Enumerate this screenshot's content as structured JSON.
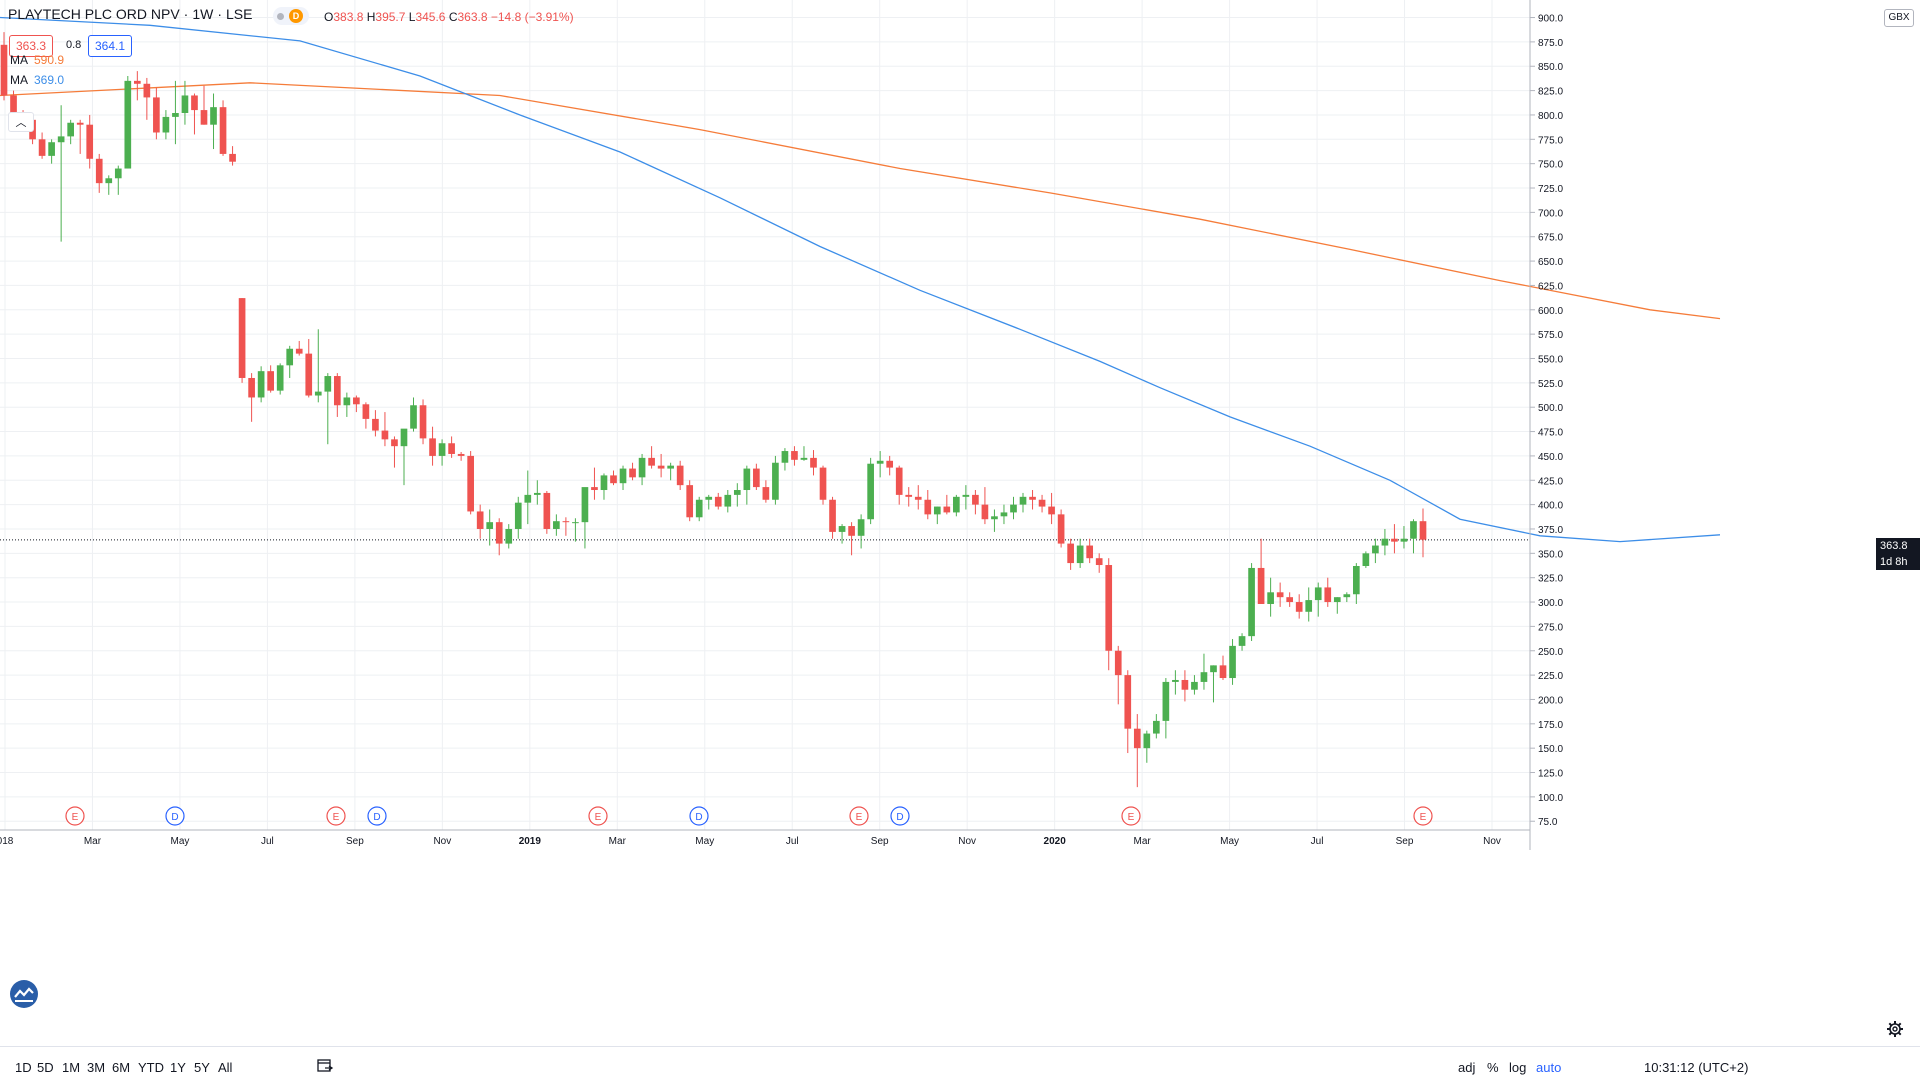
{
  "header": {
    "symbol": "PLAYTECH PLC ORD NPV",
    "interval": "1W",
    "exchange": "LSE",
    "badge_letter": "D",
    "ohlc": {
      "o_label": "O",
      "o": "383.8",
      "h_label": "H",
      "h": "395.7",
      "l_label": "L",
      "l": "345.6",
      "c_label": "C",
      "c": "363.8",
      "change": "−14.8 (−3.91%)"
    },
    "bid": "363.3",
    "spread": "0.8",
    "ask": "364.1"
  },
  "indicators": [
    {
      "label": "MA",
      "value": "590.9",
      "color": "#f57c3a"
    },
    {
      "label": "MA",
      "value": "369.0",
      "color": "#3d8ee8"
    }
  ],
  "price_axis": {
    "currency": "GBX",
    "ticks": [
      "900.0",
      "875.0",
      "850.0",
      "825.0",
      "800.0",
      "775.0",
      "750.0",
      "725.0",
      "700.0",
      "675.0",
      "650.0",
      "625.0",
      "600.0",
      "575.0",
      "550.0",
      "525.0",
      "500.0",
      "475.0",
      "450.0",
      "425.0",
      "400.0",
      "375.0",
      "350.0",
      "325.0",
      "300.0",
      "275.0",
      "250.0",
      "225.0",
      "200.0",
      "175.0",
      "150.0",
      "125.0",
      "100.0",
      "75.0"
    ],
    "last_price": "363.8",
    "countdown": "1d 8h"
  },
  "time_axis": {
    "labels": [
      "018",
      "Mar",
      "May",
      "Jul",
      "Sep",
      "Nov",
      "2019",
      "Mar",
      "May",
      "Jul",
      "Sep",
      "Nov",
      "2020",
      "Mar",
      "May",
      "Jul",
      "Sep",
      "Nov"
    ]
  },
  "events": [
    {
      "letter": "E",
      "color": "#ef5350"
    },
    {
      "letter": "D",
      "color": "#2962ff"
    },
    {
      "letter": "E",
      "color": "#ef5350"
    },
    {
      "letter": "D",
      "color": "#2962ff"
    },
    {
      "letter": "E",
      "color": "#ef5350"
    },
    {
      "letter": "D",
      "color": "#2962ff"
    },
    {
      "letter": "E",
      "color": "#ef5350"
    },
    {
      "letter": "D",
      "color": "#2962ff"
    },
    {
      "letter": "E",
      "color": "#ef5350"
    },
    {
      "letter": "E",
      "color": "#ef5350"
    }
  ],
  "bottom": {
    "ranges": [
      "1D",
      "5D",
      "1M",
      "3M",
      "6M",
      "YTD",
      "1Y",
      "5Y",
      "All"
    ],
    "time": "10:31:12 (UTC+2)",
    "options": [
      "adj",
      "%",
      "log",
      "auto"
    ]
  },
  "colors": {
    "up": "#26a69a",
    "up_fill": "#4caf50",
    "down": "#ef5350",
    "ma_long": "#f57c3a",
    "ma_short": "#3d8ee8",
    "grid": "#eef0f3"
  },
  "chart_data": {
    "type": "candlestick",
    "title": "PLAYTECH PLC ORD NPV",
    "interval": "1W",
    "ylim": [
      66,
      918
    ],
    "ylabel": "",
    "candles": [
      [
        872,
        885,
        815,
        820
      ],
      [
        820,
        825,
        795,
        800
      ],
      [
        800,
        805,
        790,
        795
      ],
      [
        795,
        800,
        770,
        775
      ],
      [
        775,
        782,
        755,
        758
      ],
      [
        758,
        775,
        750,
        772
      ],
      [
        772,
        810,
        670,
        778
      ],
      [
        778,
        795,
        770,
        792
      ],
      [
        792,
        795,
        760,
        790
      ],
      [
        790,
        800,
        745,
        755
      ],
      [
        755,
        760,
        720,
        730
      ],
      [
        730,
        738,
        718,
        735
      ],
      [
        735,
        748,
        718,
        745
      ],
      [
        745,
        840,
        745,
        835
      ],
      [
        835,
        845,
        815,
        832
      ],
      [
        832,
        838,
        795,
        818
      ],
      [
        818,
        828,
        775,
        782
      ],
      [
        782,
        805,
        775,
        798
      ],
      [
        798,
        835,
        770,
        802
      ],
      [
        802,
        835,
        790,
        820
      ],
      [
        820,
        822,
        780,
        805
      ],
      [
        805,
        830,
        790,
        790
      ],
      [
        790,
        822,
        765,
        808
      ],
      [
        808,
        815,
        758,
        760
      ],
      [
        760,
        768,
        748,
        752
      ],
      [
        612,
        612,
        525,
        530
      ],
      [
        530,
        535,
        485,
        510
      ],
      [
        510,
        542,
        505,
        537
      ],
      [
        537,
        543,
        515,
        517
      ],
      [
        517,
        545,
        513,
        543
      ],
      [
        543,
        563,
        530,
        560
      ],
      [
        560,
        568,
        553,
        555
      ],
      [
        555,
        570,
        510,
        512
      ],
      [
        512,
        580,
        505,
        516
      ],
      [
        516,
        535,
        462,
        532
      ],
      [
        532,
        535,
        490,
        502
      ],
      [
        502,
        515,
        490,
        510
      ],
      [
        510,
        512,
        495,
        503
      ],
      [
        503,
        505,
        478,
        488
      ],
      [
        488,
        497,
        470,
        476
      ],
      [
        476,
        495,
        460,
        467
      ],
      [
        467,
        470,
        438,
        460
      ],
      [
        460,
        470,
        420,
        478
      ],
      [
        478,
        510,
        475,
        502
      ],
      [
        502,
        508,
        462,
        468
      ],
      [
        468,
        480,
        440,
        450
      ],
      [
        450,
        467,
        440,
        463
      ],
      [
        463,
        470,
        448,
        452
      ],
      [
        452,
        454,
        445,
        450
      ],
      [
        450,
        455,
        390,
        393
      ],
      [
        393,
        400,
        365,
        375
      ],
      [
        375,
        395,
        358,
        382
      ],
      [
        382,
        386,
        348,
        360
      ],
      [
        360,
        380,
        355,
        375
      ],
      [
        375,
        408,
        365,
        402
      ],
      [
        402,
        435,
        380,
        410
      ],
      [
        410,
        425,
        400,
        412
      ],
      [
        412,
        414,
        370,
        375
      ],
      [
        375,
        390,
        368,
        383
      ],
      [
        383,
        387,
        368,
        382
      ],
      [
        382,
        386,
        362,
        382
      ],
      [
        382,
        415,
        355,
        418
      ],
      [
        418,
        438,
        405,
        415
      ],
      [
        415,
        432,
        405,
        430
      ],
      [
        430,
        435,
        420,
        422
      ],
      [
        422,
        440,
        415,
        437
      ],
      [
        437,
        443,
        425,
        428
      ],
      [
        428,
        452,
        420,
        448
      ],
      [
        448,
        460,
        437,
        440
      ],
      [
        440,
        452,
        428,
        437
      ],
      [
        437,
        443,
        425,
        440
      ],
      [
        440,
        445,
        415,
        420
      ],
      [
        420,
        425,
        383,
        387
      ],
      [
        387,
        408,
        383,
        405
      ],
      [
        405,
        410,
        395,
        408
      ],
      [
        408,
        412,
        395,
        398
      ],
      [
        398,
        415,
        392,
        410
      ],
      [
        410,
        422,
        398,
        415
      ],
      [
        415,
        440,
        400,
        437
      ],
      [
        437,
        442,
        415,
        418
      ],
      [
        418,
        425,
        402,
        405
      ],
      [
        405,
        450,
        400,
        443
      ],
      [
        443,
        458,
        435,
        455
      ],
      [
        455,
        460,
        440,
        446
      ],
      [
        446,
        460,
        445,
        448
      ],
      [
        448,
        456,
        430,
        438
      ],
      [
        438,
        440,
        400,
        405
      ],
      [
        405,
        408,
        365,
        372
      ],
      [
        372,
        380,
        360,
        378
      ],
      [
        378,
        382,
        348,
        368
      ],
      [
        368,
        390,
        355,
        385
      ],
      [
        385,
        448,
        380,
        442
      ],
      [
        442,
        455,
        428,
        445
      ],
      [
        445,
        450,
        430,
        438
      ],
      [
        438,
        440,
        400,
        410
      ],
      [
        410,
        418,
        398,
        408
      ],
      [
        408,
        420,
        395,
        405
      ],
      [
        405,
        415,
        385,
        390
      ],
      [
        390,
        398,
        380,
        398
      ],
      [
        398,
        410,
        390,
        392
      ],
      [
        392,
        410,
        388,
        408
      ],
      [
        408,
        420,
        395,
        410
      ],
      [
        410,
        415,
        390,
        400
      ],
      [
        400,
        418,
        380,
        385
      ],
      [
        385,
        395,
        372,
        388
      ],
      [
        388,
        400,
        380,
        392
      ],
      [
        392,
        408,
        385,
        400
      ],
      [
        400,
        412,
        392,
        408
      ],
      [
        408,
        415,
        395,
        405
      ],
      [
        405,
        410,
        392,
        398
      ],
      [
        398,
        412,
        380,
        390
      ],
      [
        390,
        395,
        356,
        360
      ],
      [
        360,
        365,
        333,
        340
      ],
      [
        340,
        365,
        335,
        358
      ],
      [
        358,
        365,
        340,
        345
      ],
      [
        345,
        350,
        330,
        338
      ],
      [
        338,
        345,
        230,
        250
      ],
      [
        250,
        255,
        195,
        225
      ],
      [
        225,
        230,
        145,
        170
      ],
      [
        170,
        185,
        110,
        150
      ],
      [
        150,
        168,
        135,
        165
      ],
      [
        165,
        185,
        160,
        178
      ],
      [
        178,
        222,
        160,
        218
      ],
      [
        218,
        230,
        205,
        220
      ],
      [
        220,
        230,
        198,
        210
      ],
      [
        210,
        225,
        205,
        218
      ],
      [
        218,
        247,
        210,
        228
      ],
      [
        228,
        235,
        197,
        235
      ],
      [
        235,
        245,
        220,
        222
      ],
      [
        222,
        262,
        215,
        255
      ],
      [
        255,
        268,
        250,
        265
      ],
      [
        265,
        340,
        260,
        335
      ],
      [
        335,
        365,
        298,
        298
      ],
      [
        298,
        325,
        285,
        310
      ],
      [
        310,
        320,
        295,
        305
      ],
      [
        305,
        310,
        295,
        300
      ],
      [
        300,
        308,
        283,
        290
      ],
      [
        290,
        315,
        280,
        302
      ],
      [
        302,
        320,
        285,
        315
      ],
      [
        315,
        325,
        295,
        300
      ],
      [
        300,
        305,
        288,
        305
      ],
      [
        305,
        310,
        300,
        308
      ],
      [
        308,
        340,
        298,
        337
      ],
      [
        337,
        352,
        335,
        350
      ],
      [
        350,
        365,
        340,
        358
      ],
      [
        358,
        375,
        348,
        365
      ],
      [
        365,
        380,
        350,
        362
      ],
      [
        362,
        378,
        355,
        365
      ],
      [
        365,
        385,
        350,
        383
      ],
      [
        383,
        396,
        346,
        364
      ]
    ],
    "ma_long": [
      [
        0,
        820
      ],
      [
        250,
        833
      ],
      [
        500,
        820
      ],
      [
        700,
        785
      ],
      [
        900,
        745
      ],
      [
        1050,
        720
      ],
      [
        1200,
        693
      ],
      [
        1350,
        662
      ],
      [
        1500,
        630
      ],
      [
        1650,
        600
      ],
      [
        1720,
        591
      ]
    ],
    "ma_short": [
      [
        0,
        900
      ],
      [
        150,
        892
      ],
      [
        300,
        876
      ],
      [
        420,
        840
      ],
      [
        520,
        800
      ],
      [
        620,
        762
      ],
      [
        720,
        715
      ],
      [
        820,
        665
      ],
      [
        920,
        620
      ],
      [
        1020,
        580
      ],
      [
        1100,
        547
      ],
      [
        1160,
        520
      ],
      [
        1230,
        490
      ],
      [
        1310,
        460
      ],
      [
        1390,
        425
      ],
      [
        1460,
        385
      ],
      [
        1540,
        368
      ],
      [
        1620,
        362
      ],
      [
        1720,
        369
      ]
    ]
  }
}
